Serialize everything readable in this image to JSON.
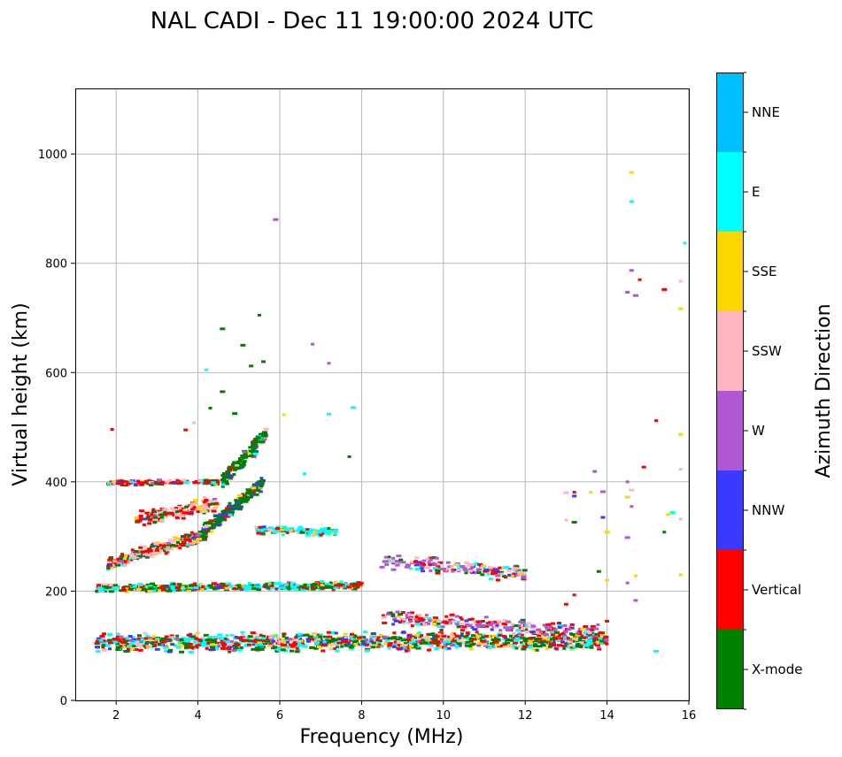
{
  "chart_data": {
    "type": "scatter",
    "title": "NAL CADI - Dec 11 19:00:00 2024 UTC",
    "xlabel": "Frequency (MHz)",
    "ylabel": "Virtual height (km)",
    "xlim": [
      1,
      16
    ],
    "ylim": [
      0,
      1120
    ],
    "xticks": [
      2,
      4,
      6,
      8,
      10,
      12,
      14,
      16
    ],
    "yticks": [
      0,
      200,
      400,
      600,
      800,
      1000
    ],
    "grid": true,
    "colorbar": {
      "label": "Azimuth Direction",
      "categories": [
        "X-mode",
        "Vertical",
        "NNW",
        "W",
        "SSW",
        "SSE",
        "E",
        "NNE"
      ],
      "colors": [
        "#008000",
        "#ff0000",
        "#3a3aff",
        "#b057d4",
        "#ffb6c1",
        "#ffd700",
        "#00ffff",
        "#00bfff"
      ]
    },
    "traces": [
      {
        "name": "o-trace-lower",
        "x0": 1.5,
        "x1": 14.0,
        "y0": 105,
        "y1": 110,
        "spread": 14,
        "n": 1100,
        "weights": [
          3,
          3,
          1,
          0.6,
          1,
          1.2,
          2.5,
          0.2
        ]
      },
      {
        "name": "e-trace",
        "x0": 1.5,
        "x1": 8.0,
        "y0": 205,
        "y1": 210,
        "spread": 6,
        "n": 480,
        "weights": [
          3,
          2,
          0.4,
          0.2,
          0.4,
          0.8,
          2.5,
          0.1
        ]
      },
      {
        "name": "spread-f-a",
        "x0": 1.8,
        "x1": 4.2,
        "y0": 250,
        "y1": 305,
        "spread": 10,
        "n": 260,
        "weights": [
          1.5,
          3,
          0.3,
          0.4,
          2,
          0.8,
          0.2,
          0
        ]
      },
      {
        "name": "spread-f-b",
        "x0": 4.0,
        "x1": 5.6,
        "y0": 300,
        "y1": 400,
        "spread": 10,
        "n": 240,
        "weights": [
          3,
          0.6,
          1.2,
          0.2,
          0.2,
          0.3,
          0.2,
          0
        ]
      },
      {
        "name": "spread-f-c",
        "x0": 2.5,
        "x1": 4.5,
        "y0": 330,
        "y1": 360,
        "spread": 12,
        "n": 160,
        "weights": [
          0.6,
          2.5,
          0.2,
          0.2,
          2.5,
          0.8,
          0.1,
          0
        ]
      },
      {
        "name": "f-layer-high",
        "x0": 4.6,
        "x1": 5.7,
        "y0": 400,
        "y1": 490,
        "spread": 14,
        "n": 130,
        "weights": [
          3,
          0.5,
          0.2,
          0.1,
          0.2,
          0.2,
          0.2,
          0
        ]
      },
      {
        "name": "double-hop",
        "x0": 1.8,
        "x1": 4.5,
        "y0": 398,
        "y1": 400,
        "spread": 4,
        "n": 140,
        "weights": [
          1,
          3,
          0.2,
          0.2,
          1,
          0.4,
          0.2,
          0
        ]
      },
      {
        "name": "oblique-mid",
        "x0": 5.4,
        "x1": 7.4,
        "y0": 312,
        "y1": 308,
        "spread": 6,
        "n": 120,
        "weights": [
          0.5,
          0.5,
          0.2,
          0.3,
          0.2,
          0.2,
          3,
          0
        ]
      },
      {
        "name": "oblique-f",
        "x0": 8.5,
        "x1": 12.0,
        "y0": 255,
        "y1": 232,
        "spread": 12,
        "n": 160,
        "weights": [
          0.3,
          1,
          0.6,
          3,
          1.5,
          0.3,
          0.8,
          0
        ]
      },
      {
        "name": "oblique-e",
        "x0": 8.5,
        "x1": 13.8,
        "y0": 150,
        "y1": 125,
        "spread": 12,
        "n": 230,
        "weights": [
          0.4,
          2,
          0.5,
          2.5,
          1.5,
          0.3,
          0.6,
          0
        ]
      }
    ],
    "scatter_points": [
      [
        4.6,
        680,
        0
      ],
      [
        5.5,
        705,
        0
      ],
      [
        5.1,
        650,
        0
      ],
      [
        5.6,
        620,
        0
      ],
      [
        5.3,
        612,
        0
      ],
      [
        5.9,
        880,
        3
      ],
      [
        6.8,
        652,
        3
      ],
      [
        7.2,
        617,
        3
      ],
      [
        7.8,
        536,
        6
      ],
      [
        7.7,
        446,
        0
      ],
      [
        7.2,
        524,
        6
      ],
      [
        4.2,
        605,
        6
      ],
      [
        4.6,
        565,
        0
      ],
      [
        3.7,
        495,
        1
      ],
      [
        1.9,
        496,
        1
      ],
      [
        4.3,
        535,
        0
      ],
      [
        4.9,
        525,
        0
      ],
      [
        6.6,
        415,
        6
      ],
      [
        6.1,
        523,
        5
      ],
      [
        3.9,
        508,
        4
      ],
      [
        14.5,
        400,
        3
      ],
      [
        14.6,
        385,
        4
      ],
      [
        14.5,
        372,
        5
      ],
      [
        14.6,
        355,
        3
      ],
      [
        14.5,
        298,
        3
      ],
      [
        14.7,
        228,
        5
      ],
      [
        14.5,
        215,
        3
      ],
      [
        14.7,
        183,
        3
      ],
      [
        14.6,
        787,
        3
      ],
      [
        14.7,
        741,
        3
      ],
      [
        14.5,
        747,
        3
      ],
      [
        14.8,
        770,
        1
      ],
      [
        14.9,
        427,
        1
      ],
      [
        15.4,
        752,
        1
      ],
      [
        15.8,
        767,
        4
      ],
      [
        15.8,
        717,
        5
      ],
      [
        15.9,
        837,
        6
      ],
      [
        15.2,
        512,
        1
      ],
      [
        15.8,
        487,
        5
      ],
      [
        15.8,
        423,
        4
      ],
      [
        15.6,
        344,
        6
      ],
      [
        15.5,
        340,
        5
      ],
      [
        15.8,
        332,
        4
      ],
      [
        15.4,
        308,
        0
      ],
      [
        15.8,
        230,
        5
      ],
      [
        15.2,
        90,
        6
      ],
      [
        14.6,
        966,
        5
      ],
      [
        14.6,
        913,
        6
      ],
      [
        13.7,
        419,
        3
      ],
      [
        13.9,
        382,
        3
      ],
      [
        13.6,
        381,
        5
      ],
      [
        13.9,
        335,
        2
      ],
      [
        13.2,
        381,
        1
      ],
      [
        13.0,
        380,
        4
      ],
      [
        13.2,
        374,
        2
      ],
      [
        13.0,
        330,
        4
      ],
      [
        13.2,
        326,
        0
      ],
      [
        14.0,
        308,
        5
      ],
      [
        13.0,
        176,
        1
      ],
      [
        13.2,
        193,
        1
      ],
      [
        13.8,
        236,
        0
      ],
      [
        14.0,
        220,
        5
      ],
      [
        14.0,
        145,
        1
      ]
    ]
  }
}
